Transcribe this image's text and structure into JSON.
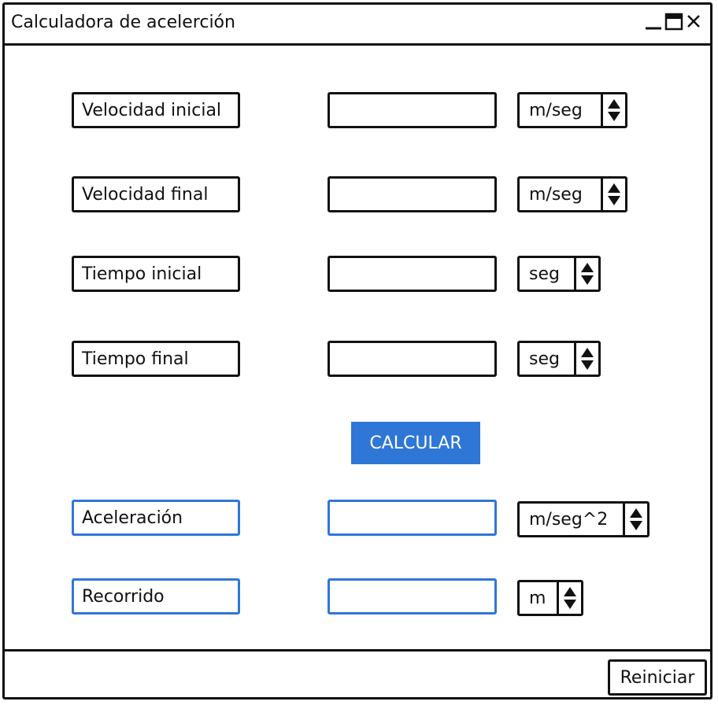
{
  "window": {
    "title": "Calculadora de acelerción"
  },
  "rows": {
    "vi": {
      "label": "Velocidad inicial",
      "unit": "m/seg",
      "value": ""
    },
    "vf": {
      "label": "Velocidad final",
      "unit": "m/seg",
      "value": ""
    },
    "ti": {
      "label": "Tiempo inicial",
      "unit": "seg",
      "value": ""
    },
    "tf": {
      "label": "Tiempo final",
      "unit": "seg",
      "value": ""
    }
  },
  "calculate_label": "CALCULAR",
  "results": {
    "acc": {
      "label": "Aceleración",
      "unit": "m/seg^2",
      "value": ""
    },
    "dist": {
      "label": "Recorrido",
      "unit": "m",
      "value": ""
    }
  },
  "footer": {
    "reset_label": "Reiniciar"
  },
  "colors": {
    "accent": "#2f77d6",
    "border": "#111111"
  }
}
